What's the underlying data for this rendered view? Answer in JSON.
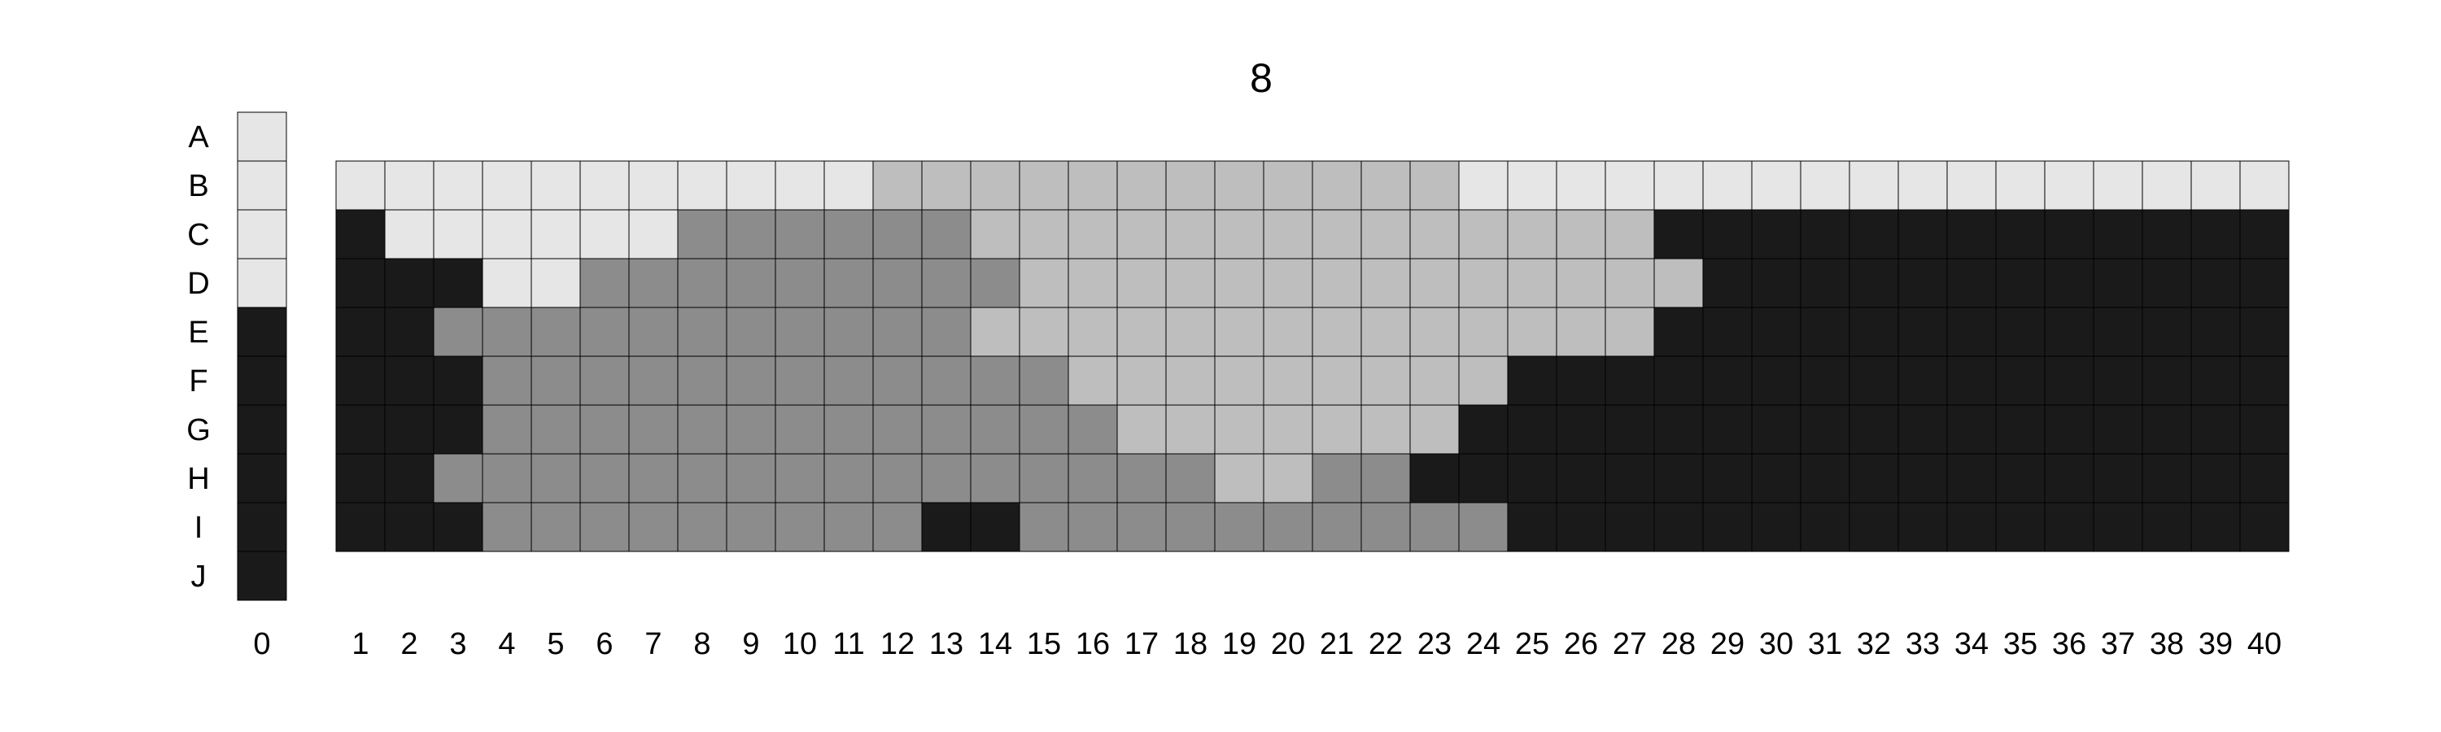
{
  "chart_data": {
    "type": "heatmap",
    "title": "8",
    "rows": [
      "A",
      "B",
      "C",
      "D",
      "E",
      "F",
      "G",
      "H",
      "I",
      "J"
    ],
    "reference_column": {
      "label": "0",
      "cells": [
        "L",
        "L",
        "L",
        "L",
        "K",
        "K",
        "K",
        "K",
        "K",
        "K"
      ]
    },
    "columns": [
      "1",
      "2",
      "3",
      "4",
      "5",
      "6",
      "7",
      "8",
      "9",
      "10",
      "11",
      "12",
      "13",
      "14",
      "15",
      "16",
      "17",
      "18",
      "19",
      "20",
      "21",
      "22",
      "23",
      "24",
      "25",
      "26",
      "27",
      "28",
      "29",
      "30",
      "31",
      "32",
      "33",
      "34",
      "35",
      "36",
      "37",
      "38",
      "39",
      "40"
    ],
    "grid_rows": [
      "B",
      "C",
      "D",
      "E",
      "F",
      "G",
      "H",
      "I"
    ],
    "grid": [
      "LLLLLLLLLLLSSSSSSSSSSSSLLLLLLLLLLLLLLLLL",
      "KLLLLLLMMMMMMSSSSSSSSSSSSSSKKKKKKKKKKKKK",
      "KKKLLMMMMMMMMMSSSSSSSSSSSSSSKKKKKKKKKKKK",
      "KKMMMMMMMMMMMSSSSSSSSSSSSSSKKKKKKKKKKKKK",
      "KKKMMMMMMMMMMMMSSSSSSSSSKKKKKKKKKKKKKKKK",
      "KKKMMMMMMMMMMMMMSSSSSSSKKKKKKKKKKKKKKKKK",
      "KKMMMMMMMMMMMMMMMMSSMMKKKKKKKKKKKKKKKKKK",
      "KKKMMMMMMMMMKKMMMMMMMMMMKKKKKKKKKKKKKKKK"
    ],
    "palette": {
      "L": "#e6e6e6",
      "S": "#bebebe",
      "M": "#8c8c8c",
      "K": "#1a1a1a"
    },
    "grid_lines": true,
    "legend": "none"
  }
}
